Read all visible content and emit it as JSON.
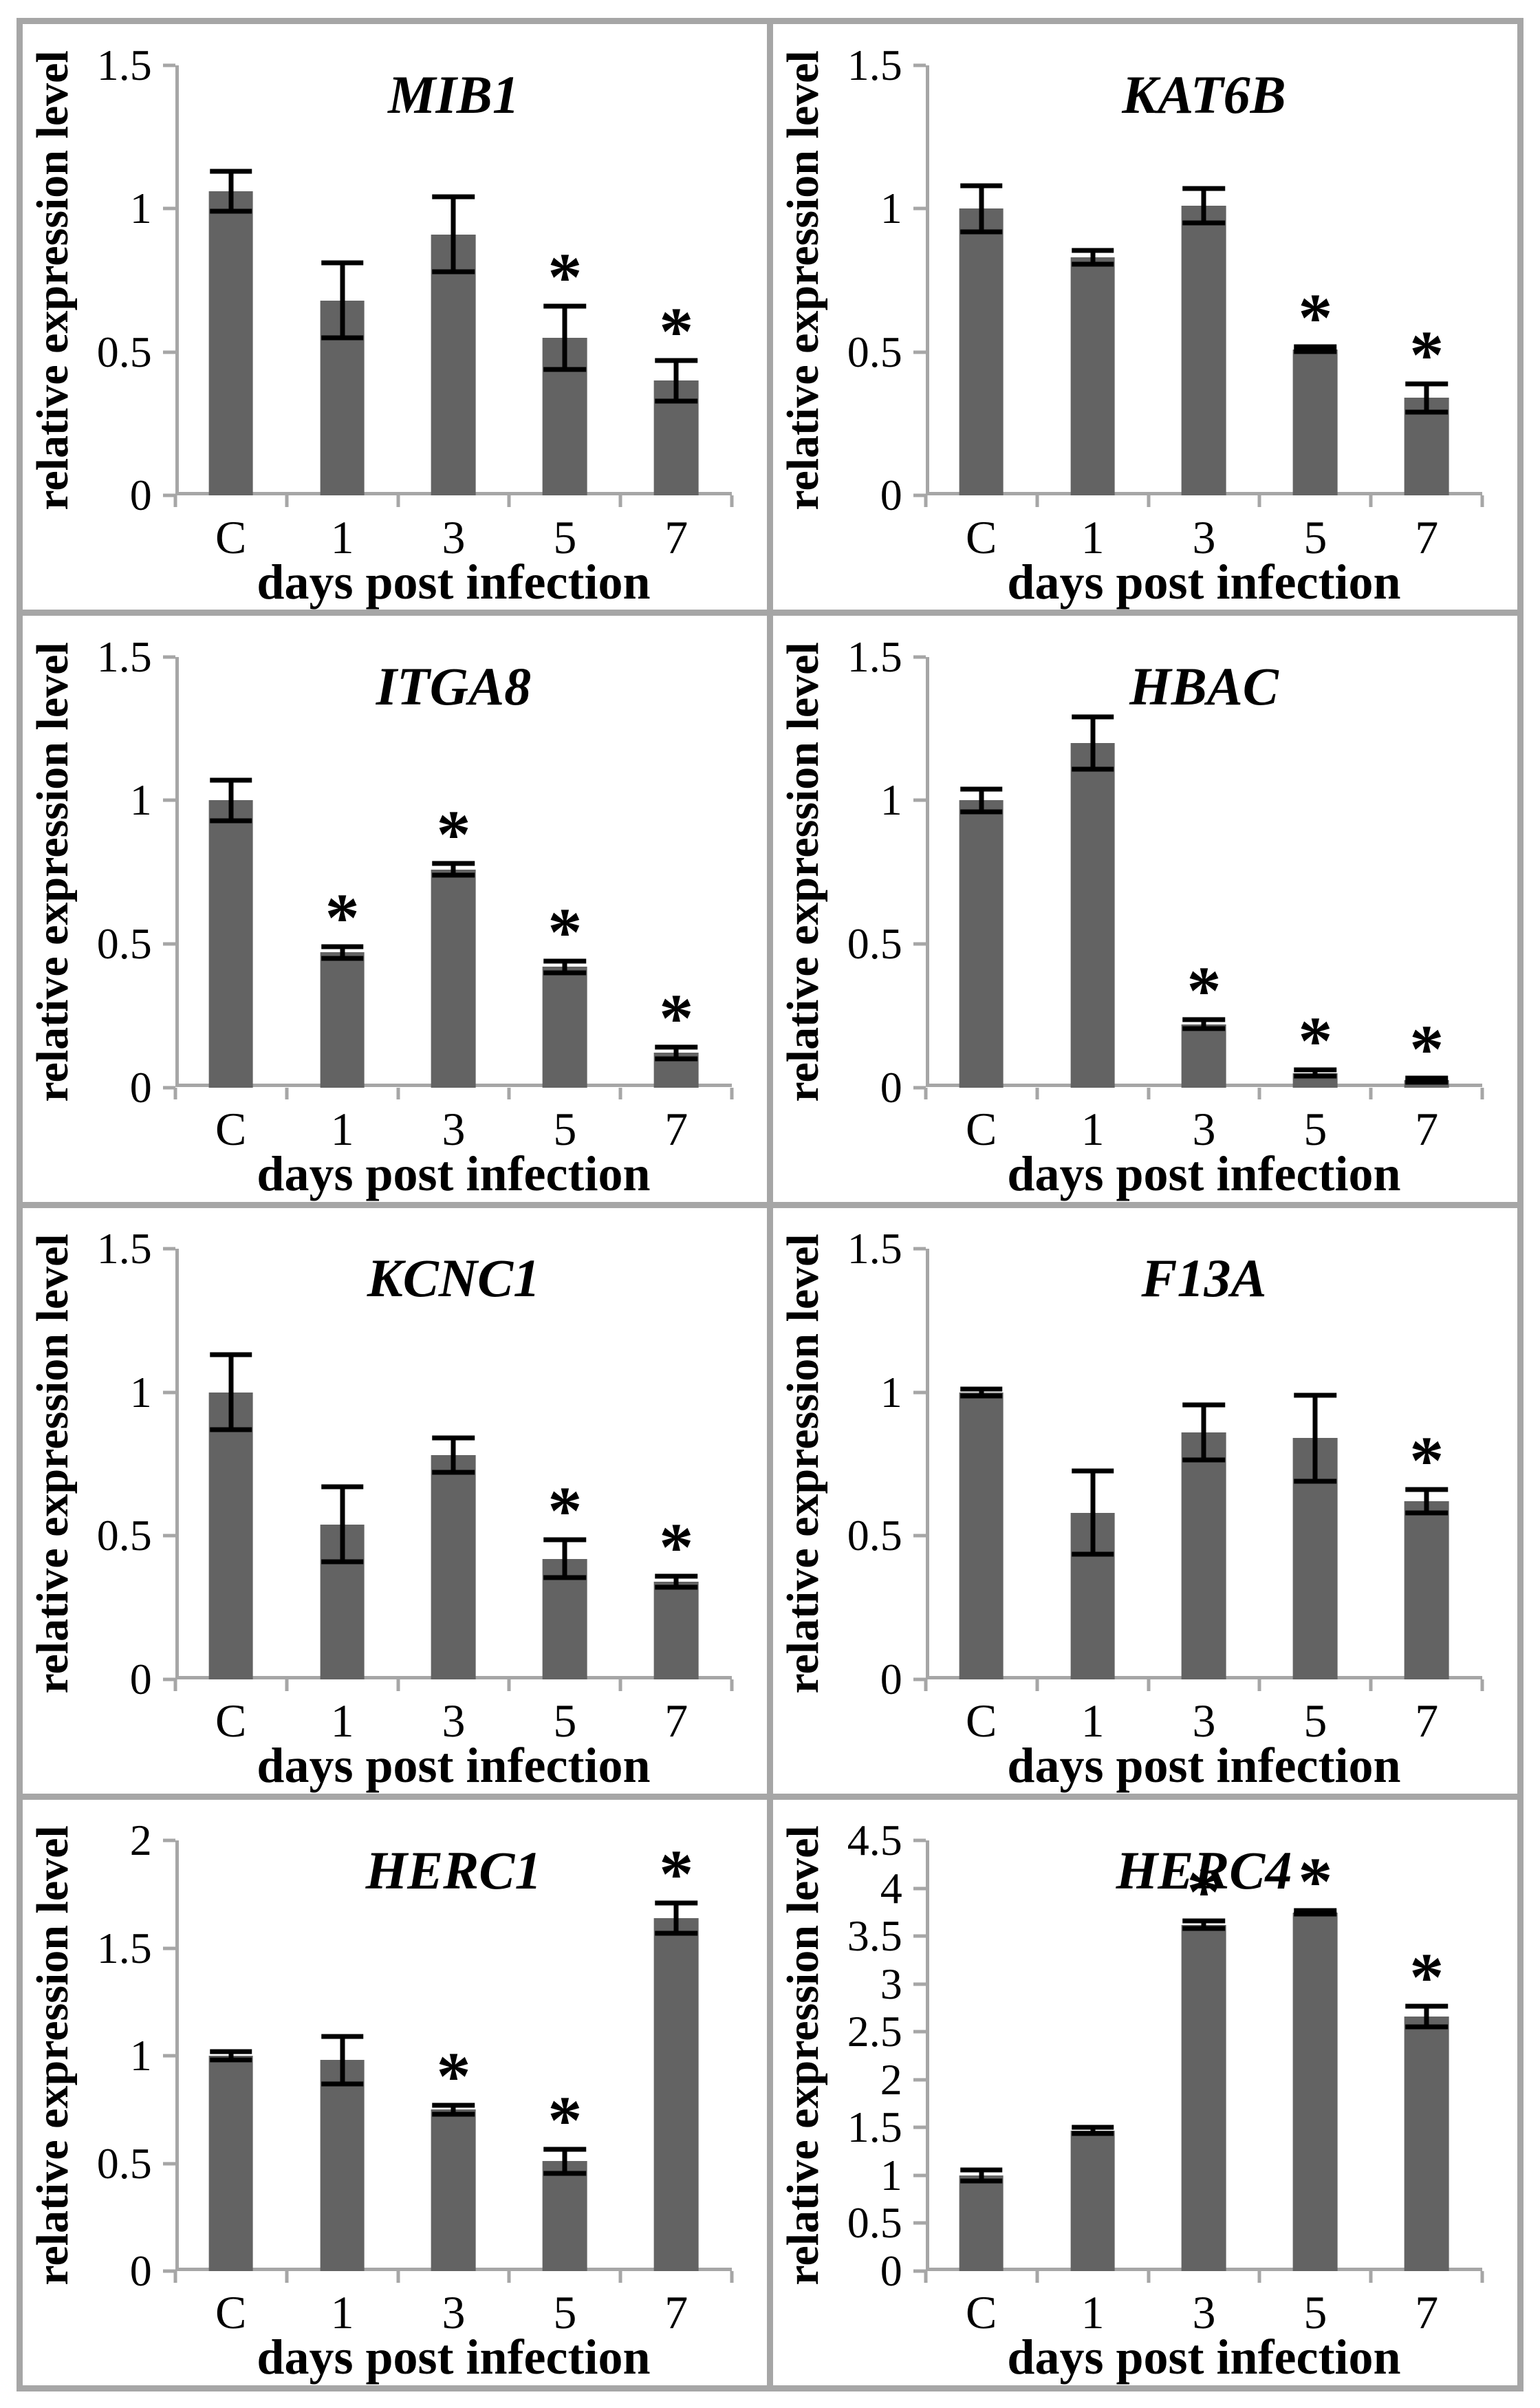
{
  "figure": {
    "xlabel": "days post infection",
    "ylabel": "relative expression level",
    "categories": [
      "C",
      "1",
      "3",
      "5",
      "7"
    ],
    "sig_marker": "*",
    "colors": {
      "bar": "#636363",
      "axis": "#a6a6a6",
      "border": "#a6a6a6",
      "text": "#000000"
    }
  },
  "chart_data": [
    {
      "type": "bar",
      "title": "MIB1",
      "xlabel": "days post infection",
      "ylabel": "relative expression level",
      "categories": [
        "C",
        "1",
        "3",
        "5",
        "7"
      ],
      "values": [
        1.06,
        0.68,
        0.91,
        0.55,
        0.4
      ],
      "errors": [
        0.07,
        0.13,
        0.13,
        0.11,
        0.07
      ],
      "significant": [
        false,
        false,
        false,
        true,
        true
      ],
      "ylim": [
        0,
        1.5
      ],
      "ytick_step": 0.5
    },
    {
      "type": "bar",
      "title": "KAT6B",
      "xlabel": "days post infection",
      "ylabel": "relative expression level",
      "categories": [
        "C",
        "1",
        "3",
        "5",
        "7"
      ],
      "values": [
        1.0,
        0.83,
        1.01,
        0.51,
        0.34
      ],
      "errors": [
        0.08,
        0.025,
        0.06,
        0.008,
        0.05
      ],
      "significant": [
        false,
        false,
        false,
        true,
        true
      ],
      "ylim": [
        0,
        1.5
      ],
      "ytick_step": 0.5
    },
    {
      "type": "bar",
      "title": "ITGA8",
      "xlabel": "days post infection",
      "ylabel": "relative expression level",
      "categories": [
        "C",
        "1",
        "3",
        "5",
        "7"
      ],
      "values": [
        1.0,
        0.47,
        0.76,
        0.42,
        0.12
      ],
      "errors": [
        0.07,
        0.02,
        0.02,
        0.02,
        0.02
      ],
      "significant": [
        false,
        true,
        true,
        true,
        true
      ],
      "ylim": [
        0,
        1.5
      ],
      "ytick_step": 0.5
    },
    {
      "type": "bar",
      "title": "HBAC",
      "xlabel": "days post infection",
      "ylabel": "relative expression level",
      "categories": [
        "C",
        "1",
        "3",
        "5",
        "7"
      ],
      "values": [
        1.0,
        1.2,
        0.22,
        0.05,
        0.025
      ],
      "errors": [
        0.04,
        0.09,
        0.015,
        0.01,
        0.008
      ],
      "significant": [
        false,
        false,
        true,
        true,
        true
      ],
      "ylim": [
        0,
        1.5
      ],
      "ytick_step": 0.5
    },
    {
      "type": "bar",
      "title": "KCNC1",
      "xlabel": "days post infection",
      "ylabel": "relative expression level",
      "categories": [
        "C",
        "1",
        "3",
        "5",
        "7"
      ],
      "values": [
        1.0,
        0.54,
        0.78,
        0.42,
        0.34
      ],
      "errors": [
        0.13,
        0.13,
        0.06,
        0.065,
        0.02
      ],
      "significant": [
        false,
        false,
        false,
        true,
        true
      ],
      "ylim": [
        0,
        1.5
      ],
      "ytick_step": 0.5
    },
    {
      "type": "bar",
      "title": "F13A",
      "xlabel": "days post infection",
      "ylabel": "relative expression level",
      "categories": [
        "C",
        "1",
        "3",
        "5",
        "7"
      ],
      "values": [
        1.0,
        0.58,
        0.86,
        0.84,
        0.62
      ],
      "errors": [
        0.012,
        0.145,
        0.095,
        0.15,
        0.04
      ],
      "significant": [
        false,
        false,
        false,
        false,
        true
      ],
      "ylim": [
        0,
        1.5
      ],
      "ytick_step": 0.5
    },
    {
      "type": "bar",
      "title": "HERC1",
      "xlabel": "days post infection",
      "ylabel": "relative expression level",
      "categories": [
        "C",
        "1",
        "3",
        "5",
        "7"
      ],
      "values": [
        1.0,
        0.98,
        0.75,
        0.51,
        1.64
      ],
      "errors": [
        0.02,
        0.11,
        0.02,
        0.055,
        0.07
      ],
      "significant": [
        false,
        false,
        true,
        true,
        true
      ],
      "ylim": [
        0,
        2
      ],
      "ytick_step": 0.5
    },
    {
      "type": "bar",
      "title": "HERC4",
      "xlabel": "days post infection",
      "ylabel": "relative expression level",
      "categories": [
        "C",
        "1",
        "3",
        "5",
        "7"
      ],
      "values": [
        1.0,
        1.47,
        3.62,
        3.75,
        2.66
      ],
      "errors": [
        0.06,
        0.03,
        0.04,
        0.02,
        0.11
      ],
      "significant": [
        false,
        false,
        true,
        true,
        true
      ],
      "ylim": [
        0,
        4.5
      ],
      "ytick_step": 0.5
    }
  ]
}
